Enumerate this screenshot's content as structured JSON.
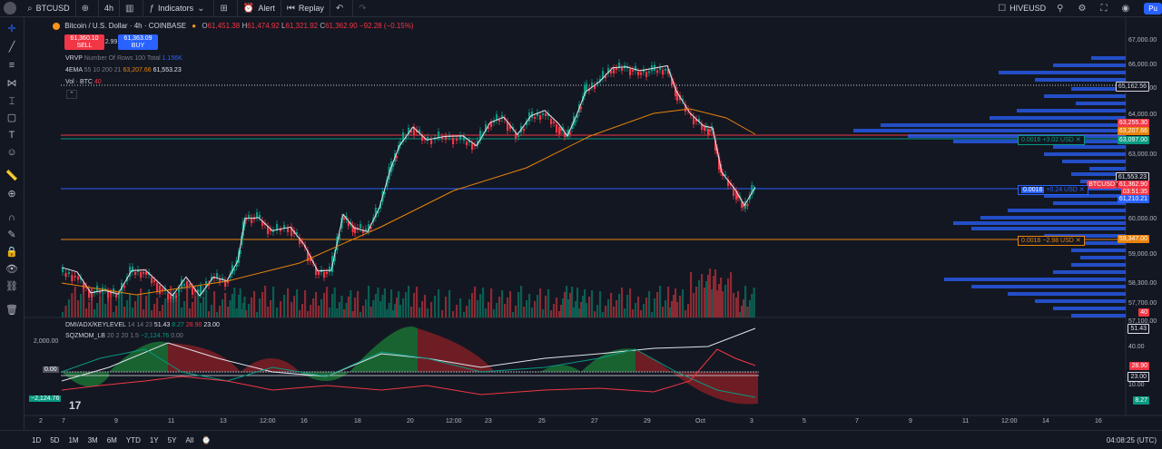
{
  "topbar": {
    "symbol": "BTCUSD",
    "interval": "4h",
    "indicators_label": "Indicators",
    "alert_label": "Alert",
    "replay_label": "Replay",
    "compare_symbol": "HIVEUSD",
    "publish_label": "Pu"
  },
  "legend": {
    "title": "Bitcoin / U.S. Dollar · 4h · COINBASE",
    "open": "61,451.38",
    "high": "61,474.92",
    "low": "61,321.92",
    "close": "61,362.90",
    "change": "−92.28 (−0.15%)",
    "o_label": "O",
    "h_label": "H",
    "l_label": "L",
    "c_label": "C"
  },
  "trade": {
    "sell_price": "61,360.10",
    "sell_label": "SELL",
    "spread": "2.99",
    "buy_price": "61,363.09",
    "buy_label": "BUY"
  },
  "indicators": {
    "vrvp": "VRVP",
    "vrvp_params": "Number Of Rows 100 Total",
    "vrvp_value": "1.156K",
    "ema": "4EMA",
    "ema_params": "55 10 200 21",
    "ema_v1": "63,207.66",
    "ema_v2": "61,553.23",
    "vol": "Vol · BTC",
    "vol_value": "40",
    "dmi": "DMI/ADX/KEYLEVEL",
    "dmi_params": "14 14 23",
    "dmi_v1": "51.43",
    "dmi_v2": "8.27",
    "dmi_v3": "28.90",
    "dmi_v4": "23.00",
    "sqz": "SQZMOM_LB",
    "sqz_params": "20 2 20 1.5",
    "sqz_v1": "−2,124.76",
    "sqz_v2": "0.00"
  },
  "price_axis": [
    "67,000.00",
    "66,000.00",
    "65,000.00",
    "64,000.00",
    "63,000.00",
    "62,400.00",
    "61,600.00",
    "60,000.00",
    "59,000.00",
    "58,900.00",
    "58,300.00",
    "57,700.00",
    "57,100.00"
  ],
  "price_labels": {
    "dotted": "65,162.56",
    "ema_upper": "63,255.30",
    "ema_orange": "63,207.66",
    "green_line": "63,097.00",
    "ema_white": "61,553.23",
    "last": "61,362.90",
    "symbol_tag": "BTCUSD",
    "countdown": "03:51:35",
    "blue_line": "61,210.21",
    "orange_line": "59,347.00",
    "vol_tag": "40"
  },
  "position_tags": {
    "upper_qty": "0.0016",
    "upper_pnl": "+3.02 USD",
    "mid_qty": "0.0016",
    "mid_pnl": "+0.24 USD",
    "lower_qty": "0.0016",
    "lower_pnl": "−2.98 USD"
  },
  "osc_axis": [
    "40.00",
    "30.00",
    "20.00",
    "10.00"
  ],
  "osc_labels": {
    "adx": "51.43",
    "mid": "28.90",
    "key": "23.00",
    "low": "8.27"
  },
  "sqz_labels": {
    "top": "2,000.00",
    "zero": "0.00",
    "bottom": "−2,124.76"
  },
  "dates": [
    "2",
    "7",
    "9",
    "11",
    "13",
    "12:00",
    "16",
    "18",
    "20",
    "12:00",
    "23",
    "25",
    "27",
    "29",
    "Oct",
    "3",
    "5",
    "7",
    "9",
    "11",
    "12:00",
    "14",
    "16"
  ],
  "bottombar": {
    "ranges": [
      "1D",
      "5D",
      "1M",
      "3M",
      "6M",
      "YTD",
      "1Y",
      "5Y",
      "All"
    ],
    "time": "04:08:25 (UTC)"
  },
  "colors": {
    "up": "#089981",
    "down": "#f23645",
    "ema_orange": "#e8830c",
    "ema_white": "#e0e3eb",
    "vrvp": "#2962ff",
    "bg": "#131722"
  }
}
